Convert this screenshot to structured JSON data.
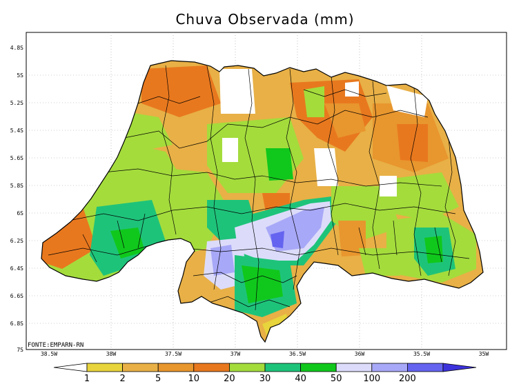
{
  "title": "Chuva Observada (mm)",
  "source": "FONTE:EMPARN-RN",
  "map": {
    "lat_ticks": [
      "4.8S",
      "5S",
      "5.2S",
      "5.4S",
      "5.6S",
      "5.8S",
      "6S",
      "6.2S",
      "6.4S",
      "6.6S",
      "6.8S",
      "7S"
    ],
    "lon_ticks": [
      "38.5W",
      "38W",
      "37.5W",
      "37W",
      "36.5W",
      "36W",
      "35.5W",
      "35W"
    ]
  },
  "colorbar": {
    "labels": [
      "1",
      "2",
      "5",
      "10",
      "20",
      "30",
      "40",
      "50",
      "100",
      "200"
    ],
    "colors": [
      "#ffffff",
      "#e8d43c",
      "#e8b046",
      "#e8962e",
      "#e8781e",
      "#a4dc3c",
      "#1ec37a",
      "#10c81c",
      "#dcdcfa",
      "#a8a8f8",
      "#6464f0",
      "#3c32dc"
    ]
  },
  "palette": {
    "background": "#ffffff",
    "border": "#000000",
    "grid": "#999999"
  }
}
